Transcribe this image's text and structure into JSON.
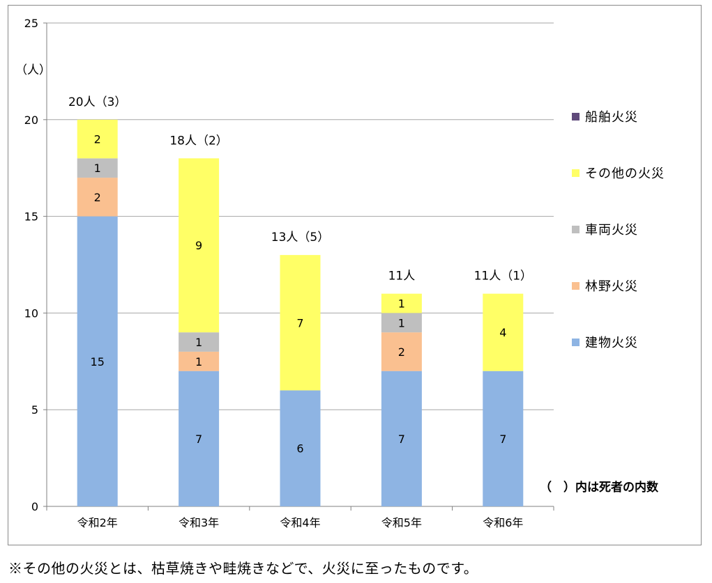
{
  "chart_data": {
    "type": "bar",
    "stacked": true,
    "title": "",
    "xlabel": "",
    "ylabel": "",
    "unit_label": "（人）",
    "ylim": [
      0,
      25
    ],
    "yticks": [
      0,
      5,
      10,
      15,
      20,
      25
    ],
    "grid": true,
    "legend_position": "right",
    "categories": [
      "令和2年",
      "令和3年",
      "令和4年",
      "令和5年",
      "令和6年"
    ],
    "totals": [
      "20人（3）",
      "18人（2）",
      "13人（5）",
      "11人",
      "11人（1）"
    ],
    "series": [
      {
        "name": "建物火災",
        "color": "#8eb4e3",
        "values": [
          15,
          7,
          6,
          7,
          7
        ]
      },
      {
        "name": "林野火災",
        "color": "#fac090",
        "values": [
          2,
          1,
          0,
          2,
          0
        ]
      },
      {
        "name": "車両火災",
        "color": "#bfbfbf",
        "values": [
          1,
          1,
          0,
          1,
          0
        ]
      },
      {
        "name": "その他の火災",
        "color": "#ffff66",
        "values": [
          2,
          9,
          7,
          1,
          4
        ]
      },
      {
        "name": "船舶火災",
        "color": "#604a7b",
        "values": [
          0,
          0,
          0,
          0,
          0
        ]
      }
    ],
    "legend_order": [
      4,
      3,
      2,
      1,
      0
    ],
    "note": "（　）内は死者の内数"
  },
  "footnote": "※その他の火災とは、枯草焼きや畦焼きなどで、火災に至ったものです。"
}
